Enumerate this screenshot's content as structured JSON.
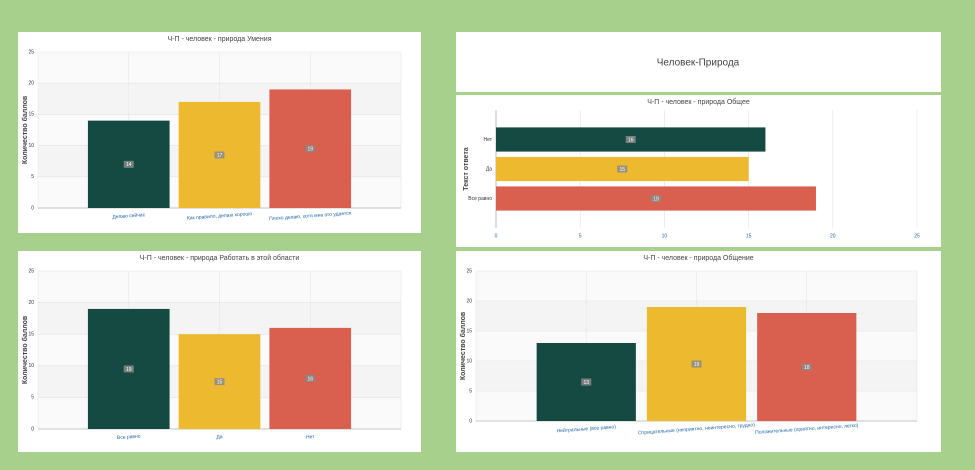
{
  "header": {
    "title": "Человек-Природа"
  },
  "chart_data": [
    {
      "type": "bar",
      "title": "Ч-П - человек - природа Умения",
      "y_label": "Количество баллов",
      "categories": [
        "Делаю сейчас",
        "Как правило, делаю хорошо",
        "Плохо делаю, хотя мне это удается"
      ],
      "values": [
        14,
        17,
        19
      ],
      "colors": [
        "#154a42",
        "#ecb92f",
        "#d95f4f"
      ],
      "ylim": [
        0,
        25
      ],
      "yticks": [
        0,
        5,
        10,
        15,
        20,
        25
      ]
    },
    {
      "type": "barh",
      "title": "Ч-П - человек - природа Общее",
      "y_label": "Текст ответа",
      "categories": [
        "Нет",
        "Да",
        "Все равно"
      ],
      "values": [
        16,
        15,
        19
      ],
      "colors": [
        "#154a42",
        "#ecb92f",
        "#d95f4f"
      ],
      "xlim": [
        0,
        25
      ],
      "xticks": [
        0,
        5,
        10,
        15,
        20,
        25
      ]
    },
    {
      "type": "bar",
      "title": "Ч-П - человек - природа Работать в этой области",
      "y_label": "Количество баллов",
      "categories": [
        "Все равно",
        "Да",
        "Нет"
      ],
      "values": [
        19,
        15,
        16
      ],
      "colors": [
        "#154a42",
        "#ecb92f",
        "#d95f4f"
      ],
      "ylim": [
        0,
        25
      ],
      "yticks": [
        0,
        5,
        10,
        15,
        20,
        25
      ]
    },
    {
      "type": "bar",
      "title": "Ч-П - человек - природа Общение",
      "y_label": "Количество баллов",
      "categories": [
        "Нейтральные (все равно)",
        "Отрицательные (неприятно, неинтересно, трудно)",
        "Положительные (приятно, интересно, легко)"
      ],
      "values": [
        13,
        19,
        18
      ],
      "colors": [
        "#154a42",
        "#ecb92f",
        "#d95f4f"
      ],
      "ylim": [
        0,
        25
      ],
      "yticks": [
        0,
        5,
        10,
        15,
        20,
        25
      ]
    }
  ]
}
